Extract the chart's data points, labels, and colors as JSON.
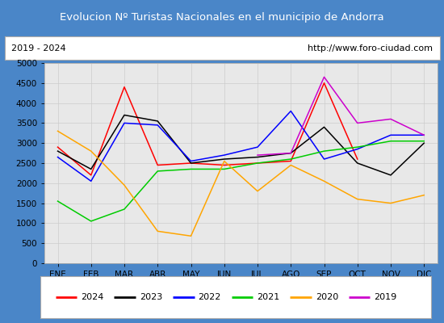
{
  "title": "Evolucion Nº Turistas Nacionales en el municipio de Andorra",
  "subtitle_left": "2019 - 2024",
  "subtitle_right": "http://www.foro-ciudad.com",
  "months": [
    "ENE",
    "FEB",
    "MAR",
    "ABR",
    "MAY",
    "JUN",
    "JUL",
    "AGO",
    "SEP",
    "OCT",
    "NOV",
    "DIC"
  ],
  "ylim": [
    0,
    5000
  ],
  "yticks": [
    0,
    500,
    1000,
    1500,
    2000,
    2500,
    3000,
    3500,
    4000,
    4500,
    5000
  ],
  "series": {
    "2024": {
      "color": "#ff0000",
      "data": [
        2900,
        2200,
        4400,
        2450,
        2500,
        2450,
        2500,
        2550,
        4500,
        2600,
        null,
        null
      ]
    },
    "2023": {
      "color": "#000000",
      "data": [
        2800,
        2350,
        3700,
        3550,
        2500,
        2600,
        2650,
        2750,
        3400,
        2500,
        2200,
        3000
      ]
    },
    "2022": {
      "color": "#0000ff",
      "data": [
        2650,
        2050,
        3500,
        3450,
        2550,
        2700,
        2900,
        3800,
        2600,
        2850,
        3200,
        3200
      ]
    },
    "2021": {
      "color": "#00cc00",
      "data": [
        1550,
        1050,
        1350,
        2300,
        2350,
        2350,
        2500,
        2600,
        2800,
        2900,
        3050,
        3050
      ]
    },
    "2020": {
      "color": "#ffa500",
      "data": [
        3300,
        2800,
        1950,
        800,
        680,
        2550,
        1800,
        2450,
        2050,
        1600,
        1500,
        1700
      ]
    },
    "2019": {
      "color": "#cc00cc",
      "data": [
        null,
        null,
        null,
        null,
        null,
        null,
        2700,
        2750,
        4650,
        3500,
        3600,
        3200
      ]
    }
  },
  "title_bg_color": "#4a86c8",
  "title_font_color": "#ffffff",
  "plot_bg_color": "#e8e8e8",
  "grid_color": "#cccccc",
  "border_color": "#aaaaaa",
  "legend_years": [
    "2024",
    "2023",
    "2022",
    "2021",
    "2020",
    "2019"
  ]
}
